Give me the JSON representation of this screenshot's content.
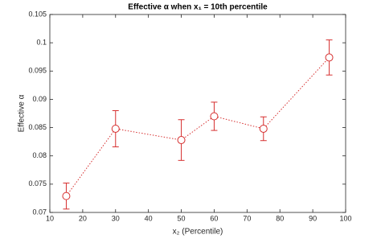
{
  "chart_data": {
    "type": "line",
    "title": "Effective α when x₁ = 10th percentile",
    "xlabel": "x₂ (Percentile)",
    "ylabel": "Effective α",
    "x": [
      15,
      30,
      50,
      60,
      75,
      95
    ],
    "values": [
      0.0729,
      0.0848,
      0.0828,
      0.087,
      0.0848,
      0.0974
    ],
    "errors": [
      0.0023,
      0.0032,
      0.0036,
      0.0025,
      0.0021,
      0.0031
    ],
    "color": "#d62f2f",
    "xlim": [
      10,
      100
    ],
    "xticks": [
      10,
      20,
      30,
      40,
      50,
      60,
      70,
      80,
      90,
      100
    ],
    "ylim": [
      0.07,
      0.105
    ],
    "yticks": [
      0.07,
      0.075,
      0.08,
      0.085,
      0.09,
      0.095,
      0.1,
      0.105
    ]
  }
}
